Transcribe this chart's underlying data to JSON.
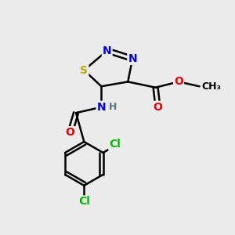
{
  "background_color": "#ebebeb",
  "atom_colors": {
    "C": "#000000",
    "N": "#0000ee",
    "S": "#bbaa00",
    "O": "#ee0000",
    "Cl": "#00bb00",
    "H": "#557777"
  },
  "bond_color": "#000000",
  "figsize": [
    3.0,
    3.0
  ],
  "dpi": 100
}
